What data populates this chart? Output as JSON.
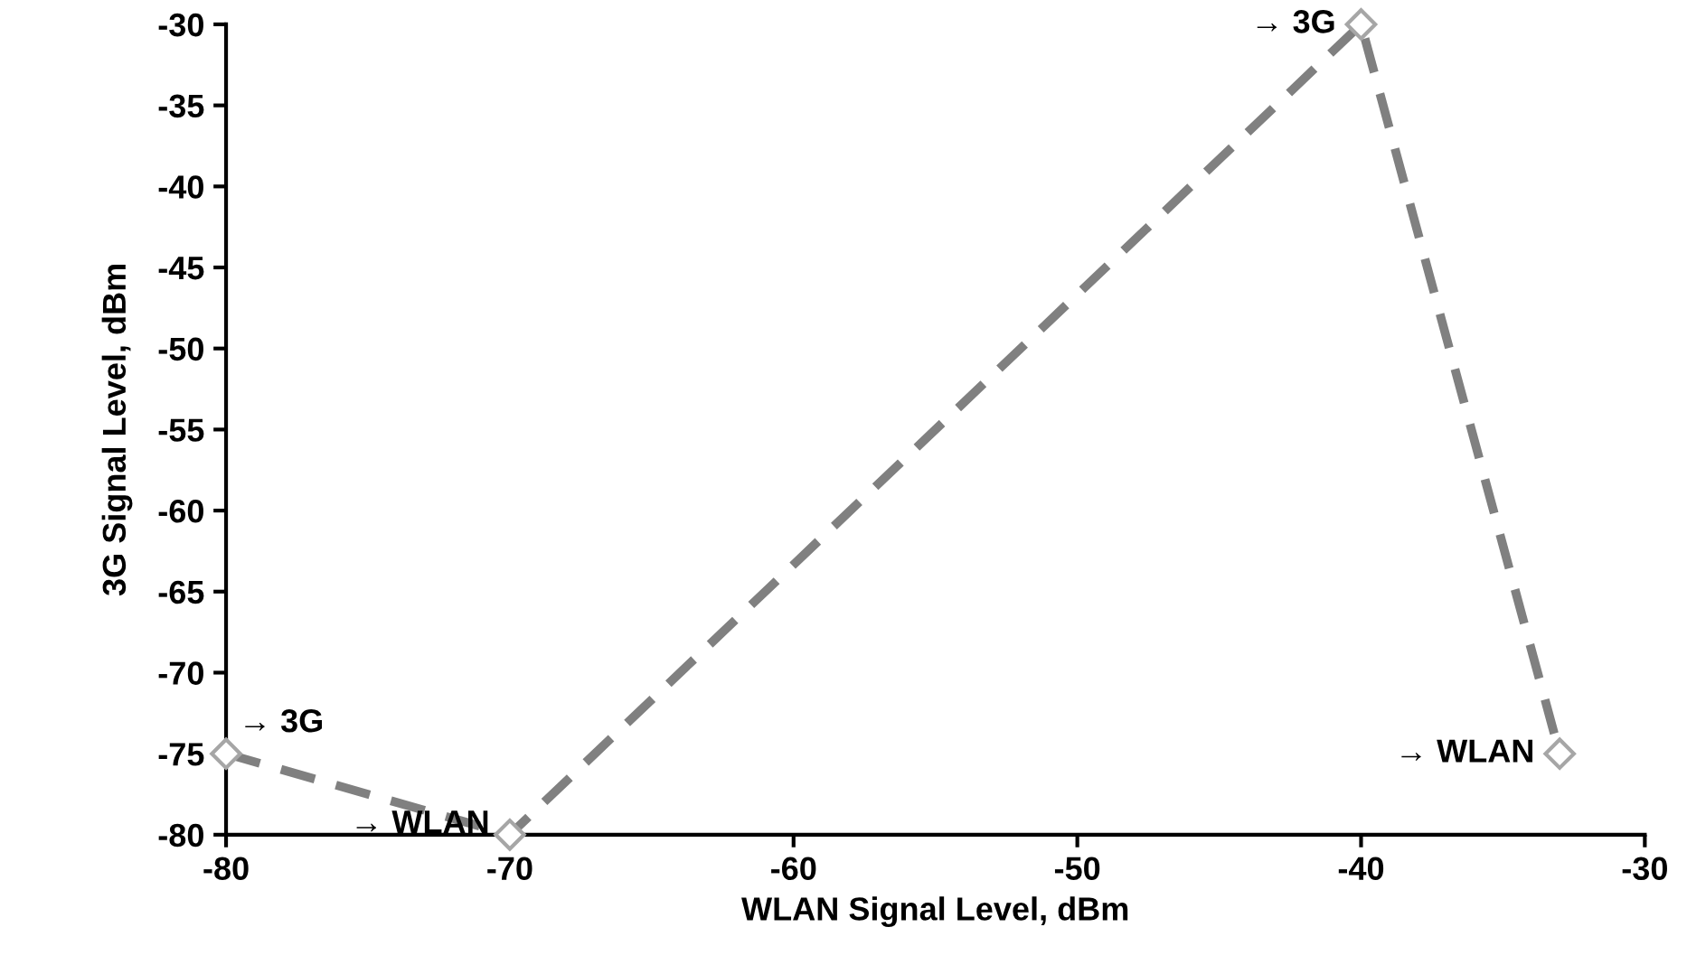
{
  "chart_data": {
    "type": "line",
    "xlabel": "WLAN Signal Level, dBm",
    "ylabel": "3G Signal Level, dBm",
    "x": [
      -80,
      -70,
      -40,
      -33
    ],
    "series": [
      {
        "color": "#808080",
        "values": [
          -75,
          -80,
          -30,
          -75
        ]
      }
    ],
    "xlim": [
      -80,
      -30
    ],
    "xticks": [
      -80,
      -70,
      -60,
      -50,
      -40,
      -30
    ],
    "ylim": [
      -80,
      -30
    ],
    "yticks": [
      -80,
      -75,
      -70,
      -65,
      -60,
      -55,
      -50,
      -45,
      -40,
      -35,
      -30
    ],
    "marker": "diamond",
    "line_style": "dashed",
    "grid": false,
    "legend": false,
    "annotations": [
      {
        "text": "→ 3G",
        "x": -80,
        "y": -75
      },
      {
        "text": "→ WLAN",
        "x": -70,
        "y": -80
      },
      {
        "text": "→ 3G",
        "x": -40,
        "y": -30
      },
      {
        "text": "→ WLAN",
        "x": -33,
        "y": -75
      }
    ]
  }
}
